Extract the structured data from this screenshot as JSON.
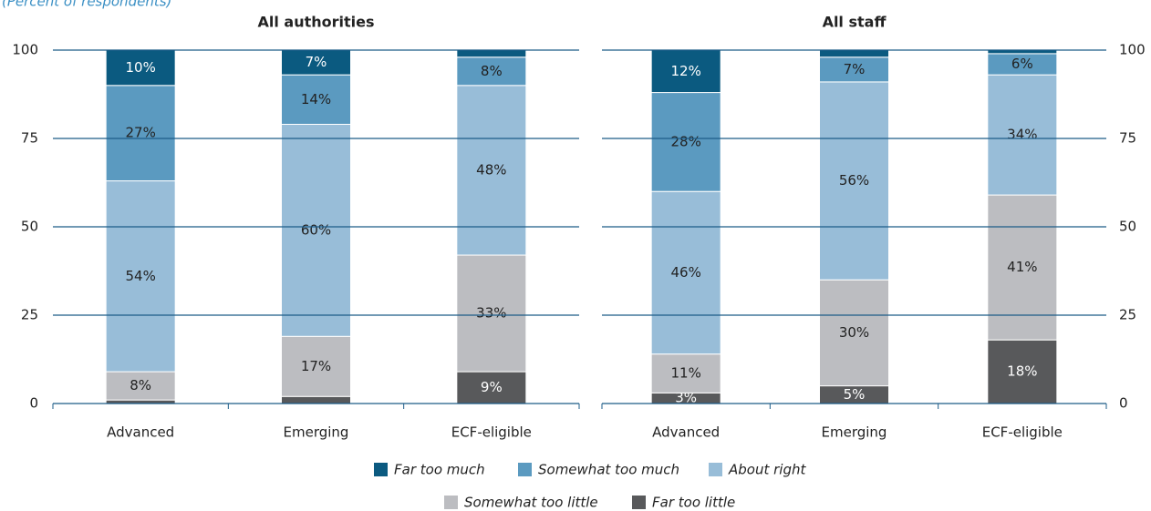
{
  "chart_data": [
    {
      "type": "bar",
      "stacked": true,
      "subtitle": "(Percent of respondents)",
      "title": "All authorities",
      "categories": [
        "Advanced",
        "Emerging",
        "ECF-eligible"
      ],
      "ylim": [
        0,
        100
      ],
      "yticks": [
        0,
        25,
        50,
        75,
        100
      ],
      "grid": true,
      "y_axis_side": "left",
      "series": [
        {
          "name": "Far too little",
          "color": "#58595b",
          "values": [
            1,
            2,
            9
          ],
          "value_labels": [
            null,
            null,
            "9%"
          ]
        },
        {
          "name": "Somewhat too little",
          "color": "#bcbdc1",
          "values": [
            8,
            17,
            33
          ],
          "value_labels": [
            "8%",
            "17%",
            "33%"
          ]
        },
        {
          "name": "About right",
          "color": "#98bdd8",
          "values": [
            54,
            60,
            48
          ],
          "value_labels": [
            "54%",
            "60%",
            "48%"
          ]
        },
        {
          "name": "Somewhat too much",
          "color": "#5b9ac0",
          "values": [
            27,
            14,
            8
          ],
          "value_labels": [
            "27%",
            "14%",
            "8%"
          ]
        },
        {
          "name": "Far too much",
          "color": "#0b5a80",
          "values": [
            10,
            7,
            2
          ],
          "value_labels": [
            "10%",
            "7%",
            null
          ]
        }
      ]
    },
    {
      "type": "bar",
      "stacked": true,
      "title": "All staff",
      "categories": [
        "Advanced",
        "Emerging",
        "ECF-eligible"
      ],
      "ylim": [
        0,
        100
      ],
      "yticks": [
        0,
        25,
        50,
        75,
        100
      ],
      "grid": true,
      "y_axis_side": "right",
      "series": [
        {
          "values": [
            3,
            5,
            18
          ],
          "value_labels": [
            "3%",
            "5%",
            "18%"
          ]
        },
        {
          "values": [
            11,
            30,
            41
          ],
          "value_labels": [
            "11%",
            "30%",
            "41%"
          ]
        },
        {
          "values": [
            46,
            56,
            34
          ],
          "value_labels": [
            "46%",
            "56%",
            "34%"
          ]
        },
        {
          "values": [
            28,
            7,
            6
          ],
          "value_labels": [
            "28%",
            "7%",
            "6%"
          ]
        },
        {
          "values": [
            12,
            2,
            1
          ],
          "value_labels": [
            "12%",
            null,
            null
          ]
        }
      ]
    }
  ]
}
